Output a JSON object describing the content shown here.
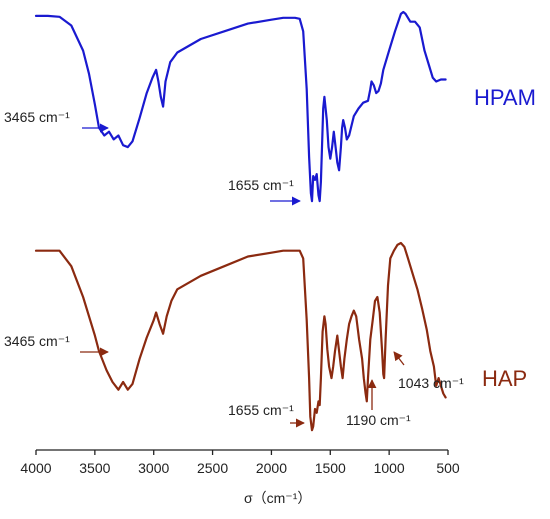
{
  "chart_data": {
    "type": "line",
    "xlabel": "σ（cm⁻¹）",
    "xlim": [
      4000,
      500
    ],
    "x_reversed": true,
    "xticks": [
      4000,
      3500,
      3000,
      2500,
      2000,
      1500,
      1000,
      500
    ],
    "series": [
      {
        "name": "HPAM",
        "color": "#1a1ad0",
        "points": [
          [
            4000,
            0.98
          ],
          [
            3900,
            0.98
          ],
          [
            3800,
            0.975
          ],
          [
            3700,
            0.93
          ],
          [
            3600,
            0.8
          ],
          [
            3550,
            0.68
          ],
          [
            3500,
            0.52
          ],
          [
            3465,
            0.4
          ],
          [
            3420,
            0.36
          ],
          [
            3380,
            0.38
          ],
          [
            3340,
            0.34
          ],
          [
            3300,
            0.36
          ],
          [
            3260,
            0.31
          ],
          [
            3220,
            0.3
          ],
          [
            3180,
            0.33
          ],
          [
            3120,
            0.45
          ],
          [
            3060,
            0.58
          ],
          [
            3010,
            0.66
          ],
          [
            2980,
            0.7
          ],
          [
            2960,
            0.64
          ],
          [
            2940,
            0.56
          ],
          [
            2920,
            0.51
          ],
          [
            2900,
            0.64
          ],
          [
            2860,
            0.74
          ],
          [
            2800,
            0.79
          ],
          [
            2600,
            0.86
          ],
          [
            2400,
            0.9
          ],
          [
            2200,
            0.94
          ],
          [
            2000,
            0.96
          ],
          [
            1900,
            0.97
          ],
          [
            1800,
            0.97
          ],
          [
            1760,
            0.965
          ],
          [
            1730,
            0.9
          ],
          [
            1700,
            0.6
          ],
          [
            1680,
            0.25
          ],
          [
            1665,
            0.06
          ],
          [
            1655,
            0.02
          ],
          [
            1645,
            0.15
          ],
          [
            1630,
            0.13
          ],
          [
            1615,
            0.16
          ],
          [
            1600,
            0.05
          ],
          [
            1590,
            0.02
          ],
          [
            1580,
            0.12
          ],
          [
            1570,
            0.3
          ],
          [
            1560,
            0.5
          ],
          [
            1550,
            0.56
          ],
          [
            1530,
            0.44
          ],
          [
            1515,
            0.3
          ],
          [
            1500,
            0.24
          ],
          [
            1485,
            0.3
          ],
          [
            1470,
            0.38
          ],
          [
            1455,
            0.3
          ],
          [
            1440,
            0.22
          ],
          [
            1425,
            0.18
          ],
          [
            1410,
            0.3
          ],
          [
            1400,
            0.4
          ],
          [
            1390,
            0.44
          ],
          [
            1375,
            0.4
          ],
          [
            1360,
            0.34
          ],
          [
            1340,
            0.36
          ],
          [
            1300,
            0.46
          ],
          [
            1260,
            0.5
          ],
          [
            1220,
            0.53
          ],
          [
            1180,
            0.54
          ],
          [
            1160,
            0.6
          ],
          [
            1150,
            0.64
          ],
          [
            1130,
            0.62
          ],
          [
            1110,
            0.58
          ],
          [
            1090,
            0.59
          ],
          [
            1070,
            0.63
          ],
          [
            1050,
            0.7
          ],
          [
            1000,
            0.8
          ],
          [
            950,
            0.9
          ],
          [
            900,
            0.99
          ],
          [
            880,
            1.0
          ],
          [
            860,
            0.99
          ],
          [
            820,
            0.95
          ],
          [
            780,
            0.95
          ],
          [
            740,
            0.92
          ],
          [
            700,
            0.8
          ],
          [
            660,
            0.72
          ],
          [
            630,
            0.66
          ],
          [
            600,
            0.64
          ],
          [
            560,
            0.65
          ],
          [
            520,
            0.65
          ]
        ],
        "annotations": [
          {
            "text": "3465 cm⁻¹",
            "x": 3465
          },
          {
            "text": "1655 cm⁻¹",
            "x": 1655
          }
        ]
      },
      {
        "name": "HAP",
        "color": "#8b2a10",
        "points": [
          [
            4000,
            0.96
          ],
          [
            3900,
            0.96
          ],
          [
            3800,
            0.96
          ],
          [
            3700,
            0.88
          ],
          [
            3600,
            0.72
          ],
          [
            3500,
            0.52
          ],
          [
            3465,
            0.44
          ],
          [
            3400,
            0.34
          ],
          [
            3350,
            0.28
          ],
          [
            3300,
            0.24
          ],
          [
            3260,
            0.28
          ],
          [
            3220,
            0.24
          ],
          [
            3180,
            0.27
          ],
          [
            3120,
            0.4
          ],
          [
            3060,
            0.51
          ],
          [
            3000,
            0.6
          ],
          [
            2980,
            0.64
          ],
          [
            2950,
            0.58
          ],
          [
            2920,
            0.53
          ],
          [
            2890,
            0.62
          ],
          [
            2850,
            0.7
          ],
          [
            2800,
            0.76
          ],
          [
            2600,
            0.83
          ],
          [
            2400,
            0.88
          ],
          [
            2200,
            0.93
          ],
          [
            2000,
            0.95
          ],
          [
            1900,
            0.96
          ],
          [
            1800,
            0.96
          ],
          [
            1760,
            0.96
          ],
          [
            1730,
            0.92
          ],
          [
            1700,
            0.6
          ],
          [
            1680,
            0.3
          ],
          [
            1670,
            0.1
          ],
          [
            1655,
            0.03
          ],
          [
            1645,
            0.05
          ],
          [
            1630,
            0.14
          ],
          [
            1615,
            0.12
          ],
          [
            1600,
            0.18
          ],
          [
            1590,
            0.16
          ],
          [
            1580,
            0.3
          ],
          [
            1565,
            0.54
          ],
          [
            1550,
            0.62
          ],
          [
            1540,
            0.58
          ],
          [
            1525,
            0.45
          ],
          [
            1510,
            0.36
          ],
          [
            1490,
            0.3
          ],
          [
            1475,
            0.36
          ],
          [
            1460,
            0.44
          ],
          [
            1440,
            0.52
          ],
          [
            1425,
            0.44
          ],
          [
            1410,
            0.36
          ],
          [
            1395,
            0.3
          ],
          [
            1380,
            0.4
          ],
          [
            1360,
            0.5
          ],
          [
            1340,
            0.58
          ],
          [
            1320,
            0.62
          ],
          [
            1300,
            0.65
          ],
          [
            1280,
            0.62
          ],
          [
            1255,
            0.5
          ],
          [
            1230,
            0.4
          ],
          [
            1215,
            0.3
          ],
          [
            1200,
            0.22
          ],
          [
            1190,
            0.18
          ],
          [
            1180,
            0.3
          ],
          [
            1160,
            0.5
          ],
          [
            1140,
            0.6
          ],
          [
            1120,
            0.7
          ],
          [
            1100,
            0.72
          ],
          [
            1080,
            0.64
          ],
          [
            1060,
            0.44
          ],
          [
            1050,
            0.32
          ],
          [
            1043,
            0.3
          ],
          [
            1030,
            0.5
          ],
          [
            1010,
            0.78
          ],
          [
            990,
            0.92
          ],
          [
            960,
            0.96
          ],
          [
            930,
            0.99
          ],
          [
            900,
            1.0
          ],
          [
            870,
            0.98
          ],
          [
            840,
            0.92
          ],
          [
            800,
            0.84
          ],
          [
            760,
            0.76
          ],
          [
            720,
            0.66
          ],
          [
            680,
            0.55
          ],
          [
            650,
            0.44
          ],
          [
            620,
            0.36
          ],
          [
            600,
            0.26
          ],
          [
            580,
            0.3
          ],
          [
            560,
            0.26
          ],
          [
            540,
            0.22
          ],
          [
            520,
            0.2
          ]
        ],
        "annotations": [
          {
            "text": "3465 cm⁻¹",
            "x": 3465
          },
          {
            "text": "1655 cm⁻¹",
            "x": 1655
          },
          {
            "text": "1190 cm⁻¹",
            "x": 1190
          },
          {
            "text": "1043 cm⁻¹",
            "x": 1043
          }
        ]
      }
    ],
    "grid": false,
    "legend": "none"
  }
}
